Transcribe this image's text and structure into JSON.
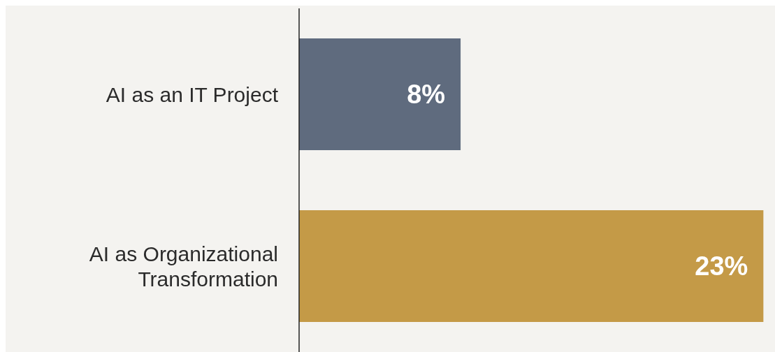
{
  "chart_data": {
    "type": "bar",
    "orientation": "horizontal",
    "categories": [
      "AI as an IT Project",
      "AI as Organizational Transformation"
    ],
    "values": [
      8,
      23
    ],
    "colors": [
      "#5f6b7e",
      "#c49a47"
    ],
    "value_labels": [
      "8%",
      "23%"
    ]
  }
}
